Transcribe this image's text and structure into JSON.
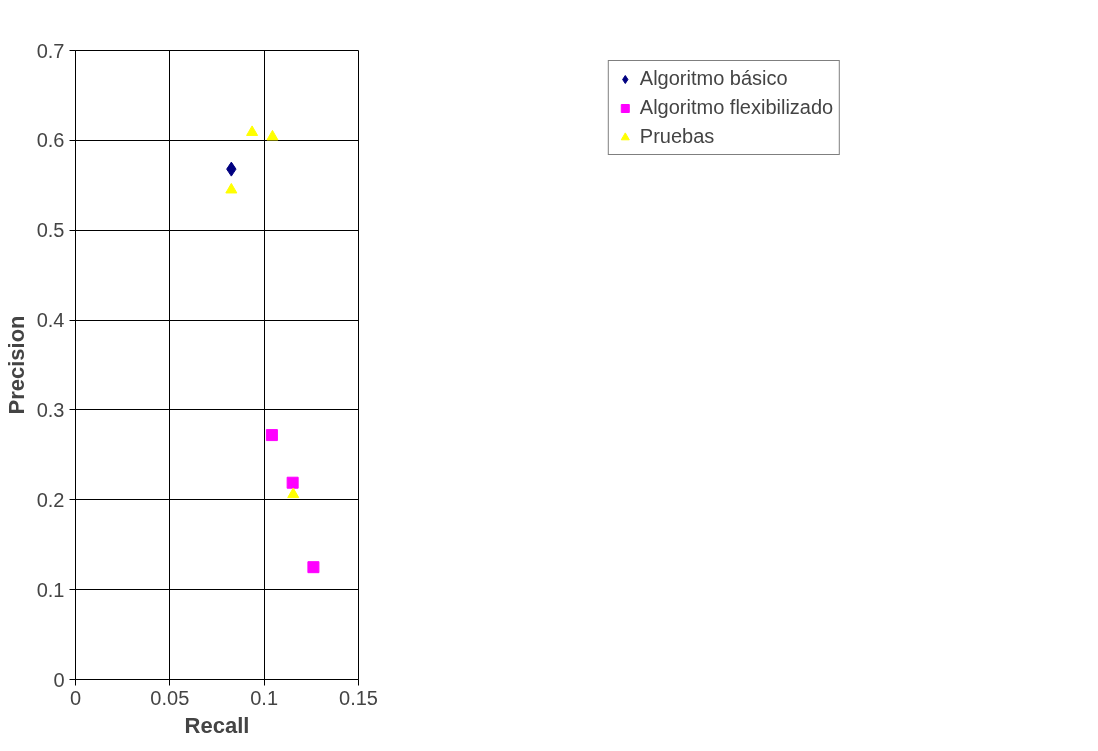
{
  "chart_data": {
    "type": "scatter",
    "xlabel": "Recall",
    "ylabel": "Precision",
    "xlim": [
      0,
      0.15
    ],
    "xticks": [
      0,
      0.05,
      0.1,
      0.15
    ],
    "ylim": [
      0,
      0.7
    ],
    "yticks": [
      0,
      0.1,
      0.2,
      0.3,
      0.4,
      0.5,
      0.6,
      0.7
    ],
    "grid": true,
    "legend": "right",
    "series": [
      {
        "name": "Algoritmo básico",
        "color": "#000080",
        "marker": "diamond",
        "x": [
          0.0826
        ],
        "values": [
          0.568
        ]
      },
      {
        "name": "Algoritmo flexibilizado",
        "color": "#ff00ff",
        "marker": "square",
        "x": [
          0.1041,
          0.1151,
          0.1261
        ],
        "values": [
          0.272,
          0.219,
          0.125
        ]
      },
      {
        "name": "Pruebas",
        "color": "#ffff00",
        "marker": "triangle",
        "x": [
          0.0826,
          0.0936,
          0.1044,
          0.1154
        ],
        "values": [
          0.545,
          0.609,
          0.604,
          0.206
        ]
      }
    ]
  }
}
